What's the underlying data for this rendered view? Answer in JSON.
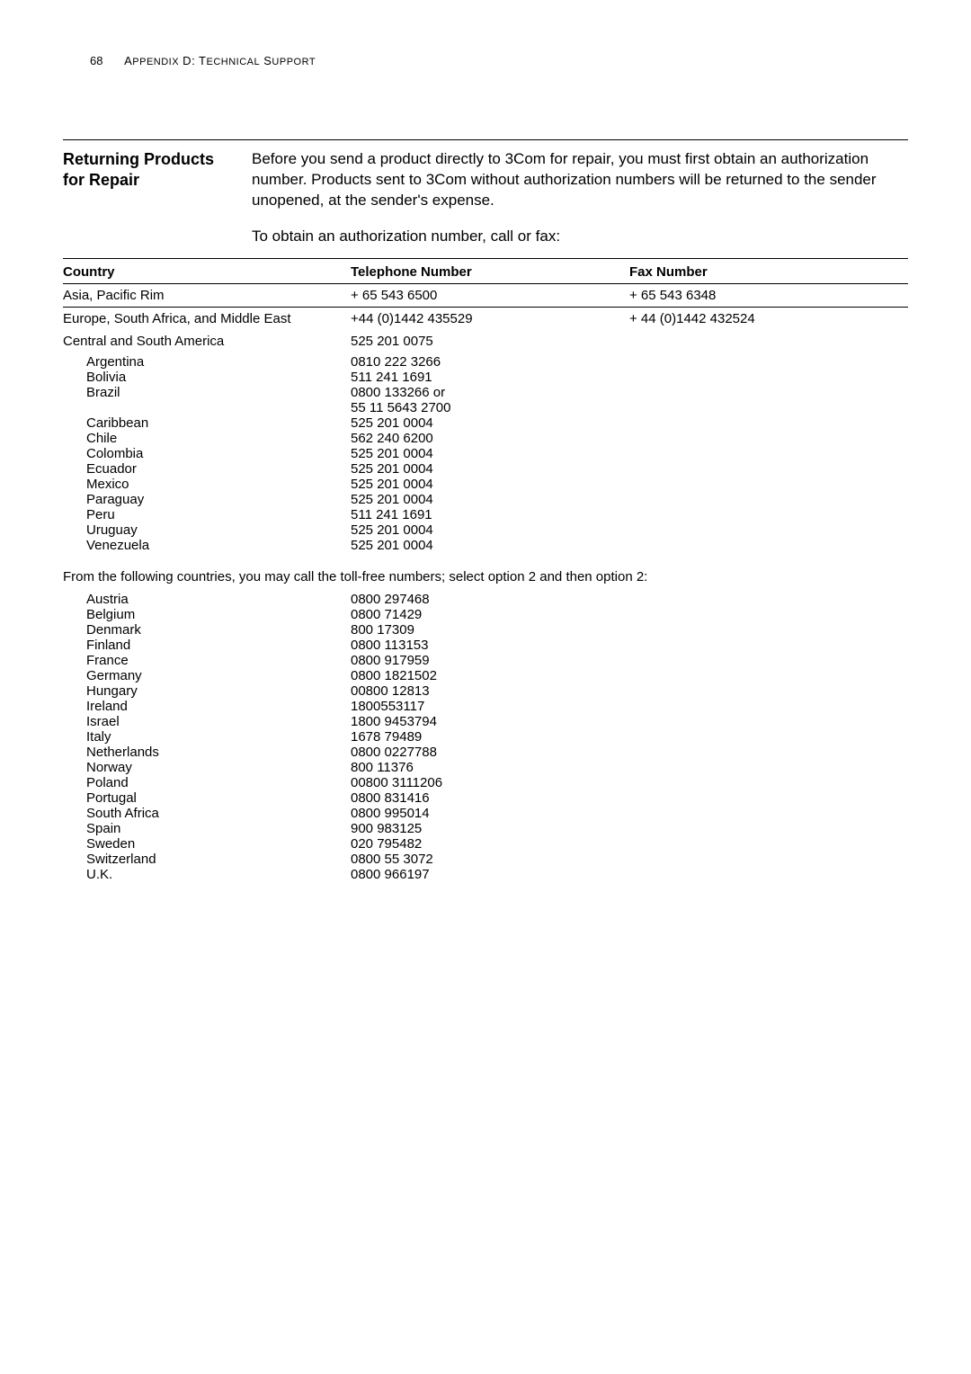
{
  "page": {
    "number": "68",
    "appendix": "APPENDIX D: TECHNICAL SUPPORT"
  },
  "section": {
    "title_line1": "Returning Products",
    "title_line2": "for Repair",
    "intro": "Before you send a product directly to 3Com for repair, you must first obtain an authorization number. Products sent to 3Com without authorization numbers will be returned to the sender unopened, at the sender's expense.",
    "subintro": "To obtain an authorization number, call or fax:"
  },
  "table": {
    "headers": {
      "country": "Country",
      "tel": "Telephone Number",
      "fax": "Fax Number"
    },
    "asia": {
      "country": "Asia, Pacific Rim",
      "tel": "+ 65 543 6500",
      "fax": "+ 65 543 6348"
    },
    "europe": {
      "country": "Europe, South Africa, and Middle East",
      "tel": "+44 (0)1442 435529",
      "fax": "+ 44 (0)1442 432524"
    },
    "csa": {
      "country": "Central and South America",
      "tel": "525 201 0075"
    },
    "csa_rows": [
      {
        "c": "Argentina",
        "t": "0810 222 3266"
      },
      {
        "c": "Bolivia",
        "t": "511 241 1691"
      },
      {
        "c": "Brazil",
        "t": "0800 133266 or"
      },
      {
        "c": "",
        "t": "55 11 5643 2700"
      },
      {
        "c": "Caribbean",
        "t": "525 201 0004"
      },
      {
        "c": "Chile",
        "t": "562 240 6200"
      },
      {
        "c": "Colombia",
        "t": "525 201 0004"
      },
      {
        "c": "Ecuador",
        "t": "525 201 0004"
      },
      {
        "c": "Mexico",
        "t": "525 201 0004"
      },
      {
        "c": "Paraguay",
        "t": "525 201 0004"
      },
      {
        "c": "Peru",
        "t": "511 241 1691"
      },
      {
        "c": "Uruguay",
        "t": "525 201 0004"
      },
      {
        "c": "Venezuela",
        "t": "525 201 0004"
      }
    ],
    "tollfree_note": "From the following countries, you may call the toll-free numbers; select option 2 and then option 2:",
    "euro_rows": [
      {
        "c": "Austria",
        "t": "0800 297468"
      },
      {
        "c": "Belgium",
        "t": "0800 71429"
      },
      {
        "c": "Denmark",
        "t": "800 17309"
      },
      {
        "c": "Finland",
        "t": "0800 113153"
      },
      {
        "c": "France",
        "t": "0800 917959"
      },
      {
        "c": "Germany",
        "t": "0800 1821502"
      },
      {
        "c": "Hungary",
        "t": "00800 12813"
      },
      {
        "c": "Ireland",
        "t": "1800553117"
      },
      {
        "c": "Israel",
        "t": "1800 9453794"
      },
      {
        "c": "Italy",
        "t": "1678 79489"
      },
      {
        "c": "Netherlands",
        "t": "0800 0227788"
      },
      {
        "c": "Norway",
        "t": "800 11376"
      },
      {
        "c": "Poland",
        "t": "00800 3111206"
      },
      {
        "c": "Portugal",
        "t": "0800 831416"
      },
      {
        "c": "South Africa",
        "t": "0800 995014"
      },
      {
        "c": "Spain",
        "t": "900 983125"
      },
      {
        "c": "Sweden",
        "t": "020 795482"
      },
      {
        "c": "Switzerland",
        "t": "0800 55 3072"
      },
      {
        "c": "U.K.",
        "t": "0800 966197"
      }
    ]
  }
}
